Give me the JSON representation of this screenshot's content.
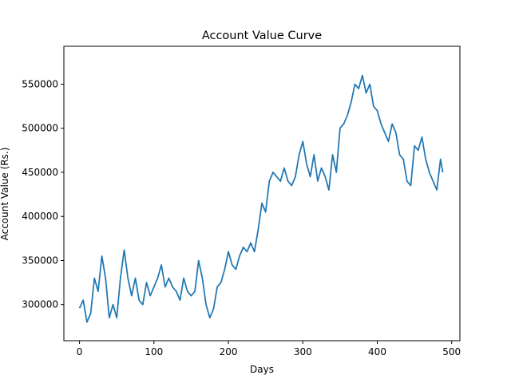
{
  "chart_data": {
    "type": "line",
    "title": "Account Value Curve",
    "xlabel": "Days",
    "ylabel": "Account Value (Rs.)",
    "xlim": [
      -21,
      511
    ],
    "ylim": [
      259000,
      593000
    ],
    "xticks": [
      0,
      100,
      200,
      300,
      400,
      500
    ],
    "xtick_labels": [
      "0",
      "100",
      "200",
      "300",
      "400",
      "500"
    ],
    "yticks": [
      300000,
      350000,
      400000,
      450000,
      500000,
      550000
    ],
    "ytick_labels": [
      "300000",
      "350000",
      "400000",
      "450000",
      "500000",
      "550000"
    ],
    "grid": false,
    "line_color": "#1f77b4",
    "series": [
      {
        "x": [
          0,
          5,
          10,
          15,
          20,
          25,
          30,
          35,
          40,
          45,
          50,
          55,
          60,
          65,
          70,
          75,
          80,
          85,
          90,
          95,
          100,
          105,
          110,
          115,
          120,
          125,
          130,
          135,
          140,
          145,
          150,
          155,
          160,
          165,
          170,
          175,
          180,
          185,
          190,
          195,
          200,
          205,
          210,
          215,
          220,
          225,
          230,
          235,
          240,
          245,
          250,
          255,
          260,
          265,
          270,
          275,
          280,
          285,
          290,
          295,
          300,
          305,
          310,
          315,
          320,
          325,
          330,
          335,
          340,
          345,
          350,
          355,
          360,
          365,
          370,
          375,
          380,
          385,
          390,
          395,
          400,
          405,
          410,
          415,
          420,
          425,
          430,
          435,
          440,
          445,
          450,
          455,
          460,
          465,
          470,
          475,
          480,
          485,
          488
        ],
        "values": [
          296000,
          305000,
          280000,
          290000,
          330000,
          315000,
          355000,
          330000,
          285000,
          300000,
          285000,
          330000,
          362000,
          330000,
          310000,
          330000,
          305000,
          300000,
          325000,
          310000,
          320000,
          330000,
          345000,
          320000,
          330000,
          320000,
          315000,
          305000,
          330000,
          315000,
          310000,
          315000,
          350000,
          330000,
          300000,
          285000,
          295000,
          320000,
          325000,
          340000,
          360000,
          345000,
          340000,
          355000,
          365000,
          360000,
          370000,
          360000,
          385000,
          415000,
          405000,
          440000,
          450000,
          445000,
          440000,
          455000,
          440000,
          435000,
          445000,
          470000,
          485000,
          460000,
          445000,
          470000,
          440000,
          455000,
          445000,
          430000,
          470000,
          450000,
          500000,
          505000,
          515000,
          530000,
          550000,
          545000,
          560000,
          540000,
          550000,
          525000,
          520000,
          505000,
          495000,
          485000,
          505000,
          495000,
          470000,
          465000,
          440000,
          435000,
          480000,
          475000,
          490000,
          465000,
          450000,
          440000,
          430000,
          465000,
          450000
        ]
      }
    ]
  }
}
